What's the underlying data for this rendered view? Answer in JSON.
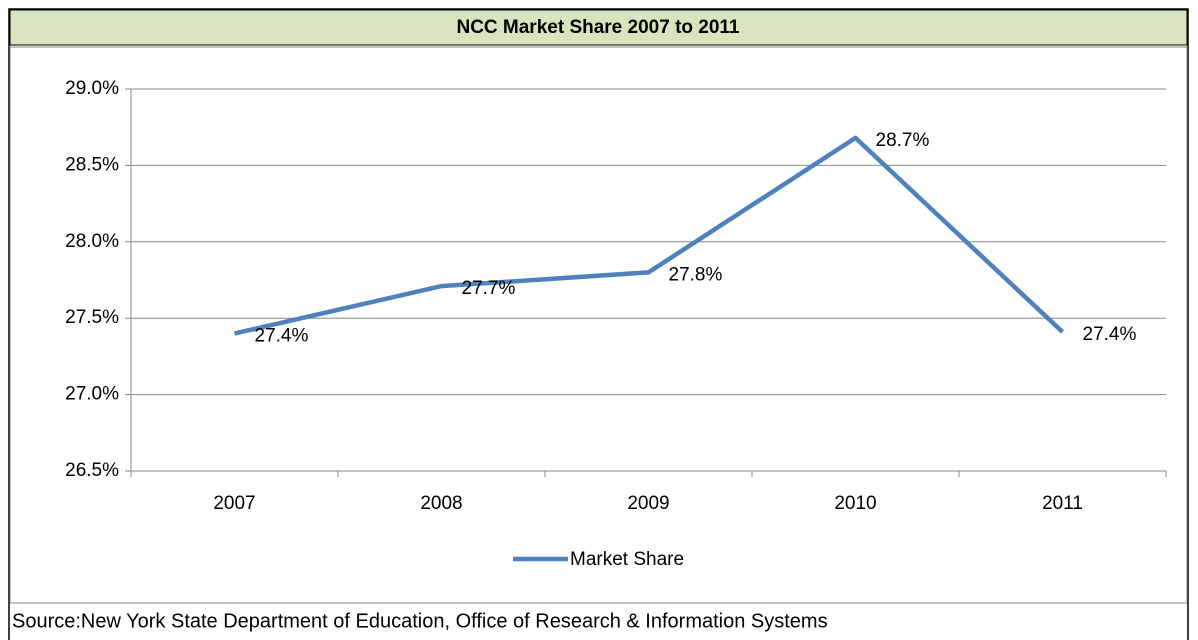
{
  "chart_data": {
    "type": "line",
    "title": "NCC Market Share 2007 to 2011",
    "categories": [
      "2007",
      "2008",
      "2009",
      "2010",
      "2011"
    ],
    "series": [
      {
        "name": "Market Share",
        "color": "#4f81bd",
        "values": [
          27.4,
          27.71,
          27.8,
          28.68,
          27.41
        ],
        "value_labels": [
          "27.4%",
          "27.7%",
          "27.8%",
          "28.7%",
          "27.4%"
        ]
      }
    ],
    "ylim": [
      26.5,
      29.0
    ],
    "yticks": [
      {
        "value": 26.5,
        "label": "26.5%"
      },
      {
        "value": 27.0,
        "label": "27.0%"
      },
      {
        "value": 27.5,
        "label": "27.5%"
      },
      {
        "value": 28.0,
        "label": "28.0%"
      },
      {
        "value": 28.5,
        "label": "28.5%"
      },
      {
        "value": 29.0,
        "label": "29.0%"
      }
    ],
    "grid": true,
    "legend": "bottom",
    "source": "Source:New York State Department of Education, Office of Research & Information Systems"
  }
}
